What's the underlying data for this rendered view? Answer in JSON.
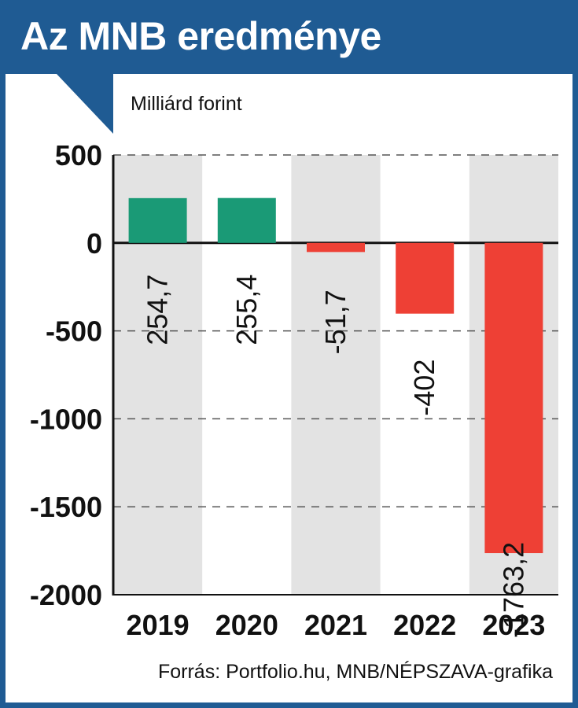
{
  "header": {
    "title": "Az MNB eredménye"
  },
  "unit_label": "Milliárd forint",
  "source": "Forrás: Portfolio.hu, MNB/NÉPSZAVA-grafika",
  "colors": {
    "brand": "#1f5b93",
    "positive": "#1a9a76",
    "negative": "#ee4035",
    "band": "#e3e3e3",
    "grid": "#555555"
  },
  "chart_data": {
    "type": "bar",
    "title": "Az MNB eredménye",
    "ylabel": "Milliárd forint",
    "xlabel": "",
    "categories": [
      "2019",
      "2020",
      "2021",
      "2022",
      "2023"
    ],
    "values": [
      254.7,
      255.4,
      -51.7,
      -402,
      -1763.2
    ],
    "value_labels": [
      "254,7",
      "255,4",
      "-51,7",
      "-402",
      "-1763,2"
    ],
    "ylim": [
      -2000,
      500
    ],
    "yticks": [
      500,
      0,
      -500,
      -1000,
      -1500,
      -2000
    ],
    "ytick_labels": [
      "500",
      "0",
      "-500",
      "-1000",
      "-1500",
      "-2000"
    ],
    "grid": true,
    "grid_style": "dashed",
    "value_label_orientation": "vertical"
  }
}
